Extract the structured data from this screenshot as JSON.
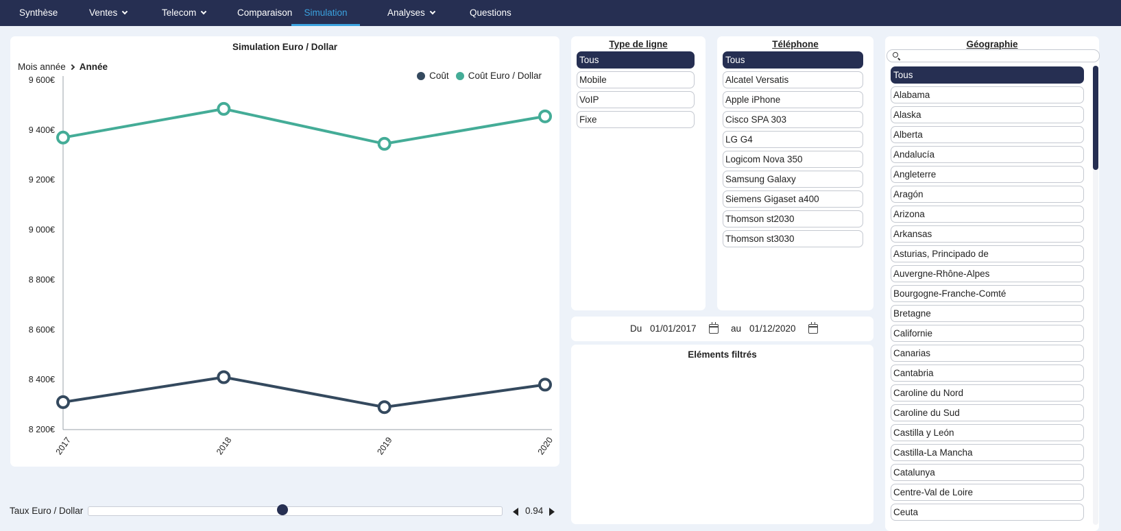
{
  "nav": {
    "items": [
      {
        "label": "Synthèse",
        "dropdown": false,
        "active": false
      },
      {
        "label": "Ventes",
        "dropdown": true,
        "active": false
      },
      {
        "label": "Telecom",
        "dropdown": true,
        "active": false
      },
      {
        "label": "Comparaison",
        "dropdown": false,
        "active": false
      },
      {
        "label": "Simulation",
        "dropdown": false,
        "active": true
      },
      {
        "label": "Analyses",
        "dropdown": true,
        "active": false
      },
      {
        "label": "Questions",
        "dropdown": false,
        "active": false
      }
    ]
  },
  "chart": {
    "title": "Simulation Euro / Dollar",
    "breadcrumb": {
      "parent": "Mois année",
      "current": "Année"
    }
  },
  "chart_data": {
    "type": "line",
    "title": "Simulation Euro / Dollar",
    "categories": [
      "2017",
      "2018",
      "2019",
      "2020"
    ],
    "series": [
      {
        "name": "Coût",
        "color": "#34495e",
        "values": [
          8310,
          8410,
          8290,
          8380
        ]
      },
      {
        "name": "Coût Euro / Dollar",
        "color": "#44ac97",
        "values": [
          9370,
          9485,
          9345,
          9455
        ]
      }
    ],
    "ylim": [
      8200,
      9600
    ],
    "yticks": [
      8200,
      8400,
      8600,
      8800,
      9000,
      9200,
      9400,
      9600
    ],
    "ytick_labels": [
      "8 200€",
      "8 400€",
      "8 600€",
      "8 800€",
      "9 000€",
      "9 200€",
      "9 400€",
      "9 600€"
    ],
    "legend_position": "top-right",
    "grid": false
  },
  "slider": {
    "label": "Taux Euro / Dollar",
    "value": "0.94",
    "fraction": 0.47
  },
  "type_ligne": {
    "title": "Type de ligne",
    "options": [
      "Tous",
      "Mobile",
      "VoIP",
      "Fixe"
    ],
    "selected": "Tous"
  },
  "telephone": {
    "title": "Téléphone",
    "options": [
      "Tous",
      "Alcatel Versatis",
      "Apple iPhone",
      "Cisco SPA 303",
      "LG G4",
      "Logicom Nova 350",
      "Samsung Galaxy",
      "Siemens Gigaset a400",
      "Thomson st2030",
      "Thomson st3030"
    ],
    "selected": "Tous"
  },
  "dates": {
    "from_label": "Du",
    "from_value": "01/01/2017",
    "to_label": "au",
    "to_value": "01/12/2020"
  },
  "filtered": {
    "title": "Eléments filtrés"
  },
  "geographie": {
    "title": "Géographie",
    "search_placeholder": "",
    "options": [
      "Tous",
      "Alabama",
      "Alaska",
      "Alberta",
      "Andalucía",
      "Angleterre",
      "Aragón",
      "Arizona",
      "Arkansas",
      "Asturias, Principado de",
      "Auvergne-Rhône-Alpes",
      "Bourgogne-Franche-Comté",
      "Bretagne",
      "Californie",
      "Canarias",
      "Cantabria",
      "Caroline du Nord",
      "Caroline du Sud",
      "Castilla y León",
      "Castilla-La Mancha",
      "Catalunya",
      "Centre-Val de Loire",
      "Ceuta"
    ],
    "selected": "Tous"
  }
}
